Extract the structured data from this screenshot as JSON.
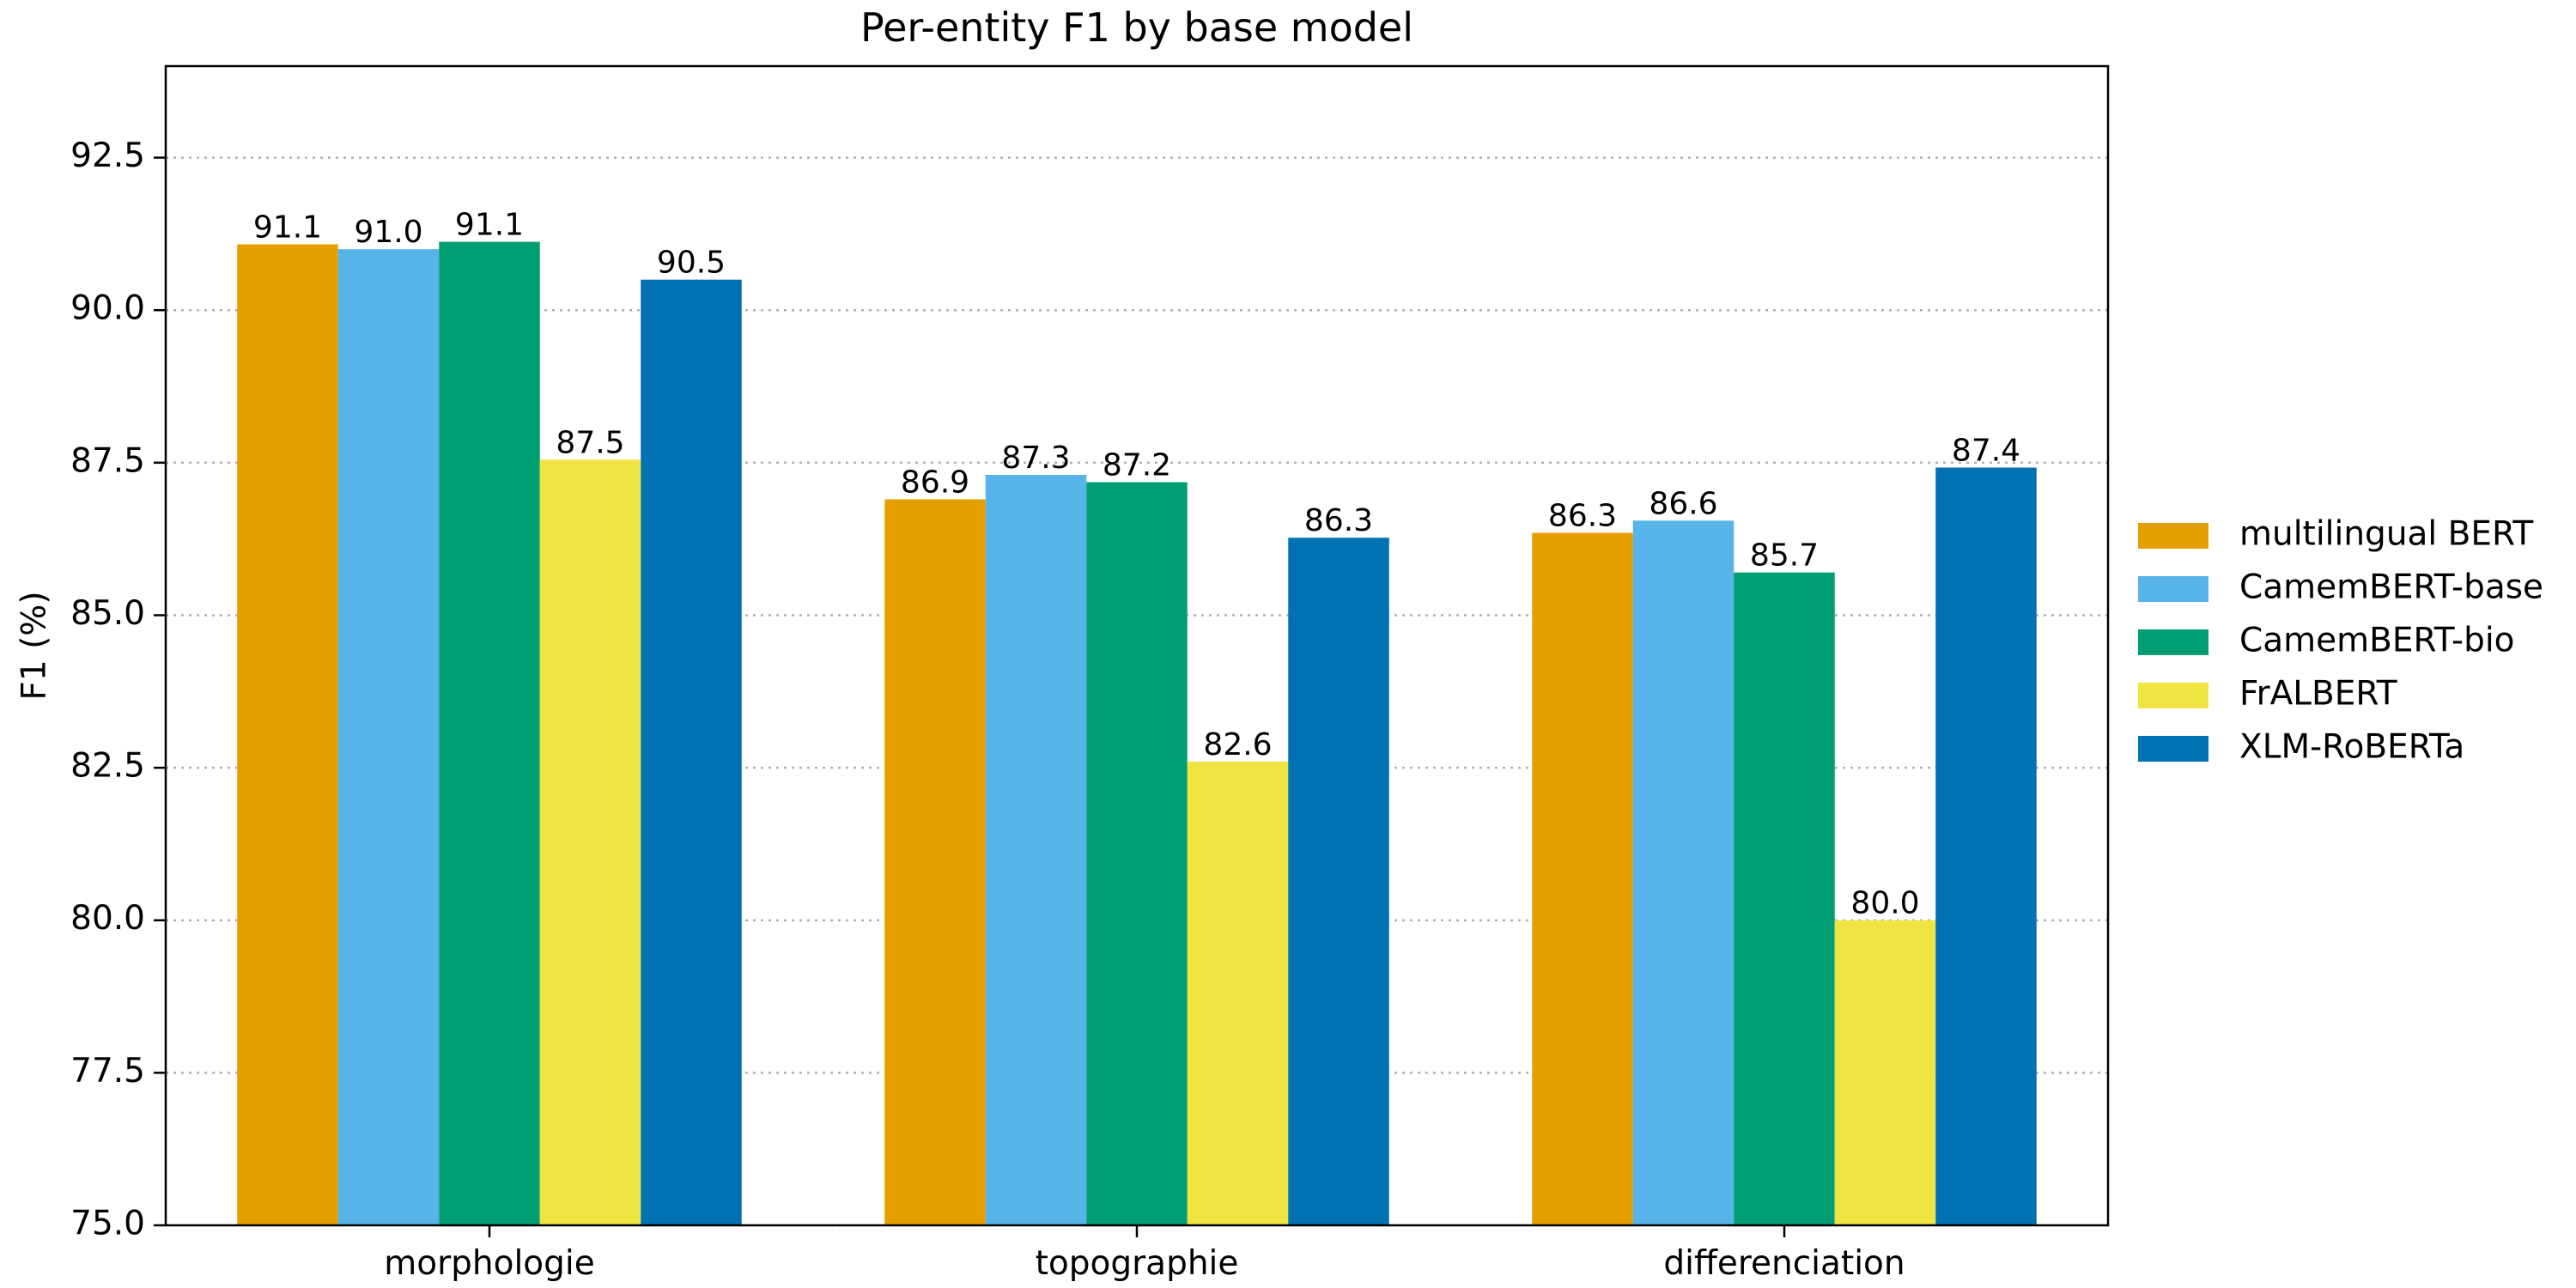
{
  "chart_data": {
    "type": "bar",
    "title": "Per-entity F1 by base model",
    "xlabel": "",
    "ylabel": "F1 (%)",
    "categories": [
      "morphologie",
      "topographie",
      "differenciation"
    ],
    "ylim": [
      75.0,
      94.0
    ],
    "yticks": [
      "75.0",
      "77.5",
      "80.0",
      "82.5",
      "85.0",
      "87.5",
      "90.0",
      "92.5"
    ],
    "grid": "y-dotted",
    "legend_position": "right",
    "series": [
      {
        "name": "multilingual BERT",
        "color": "#E69F00",
        "values": [
          91.08,
          86.9,
          86.35
        ],
        "labels": [
          "91.1",
          "86.9",
          "86.3"
        ]
      },
      {
        "name": "CamemBERT-base",
        "color": "#56B4E9",
        "values": [
          91.0,
          87.3,
          86.55
        ],
        "labels": [
          "91.0",
          "87.3",
          "86.6"
        ]
      },
      {
        "name": "CamemBERT-bio",
        "color": "#009E73",
        "values": [
          91.12,
          87.18,
          85.7
        ],
        "labels": [
          "91.1",
          "87.2",
          "85.7"
        ]
      },
      {
        "name": "FrALBERT",
        "color": "#F0E442",
        "values": [
          87.55,
          82.6,
          80.0
        ],
        "labels": [
          "87.5",
          "82.6",
          "80.0"
        ]
      },
      {
        "name": "XLM-RoBERTa",
        "color": "#0072B2",
        "values": [
          90.5,
          86.27,
          87.42
        ],
        "labels": [
          "90.5",
          "86.3",
          "87.4"
        ]
      }
    ]
  }
}
